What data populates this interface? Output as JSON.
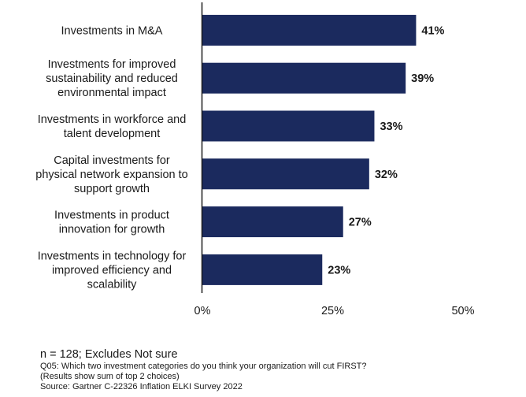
{
  "chart_data": {
    "type": "bar",
    "orientation": "horizontal",
    "categories": [
      [
        "Investments in M&A"
      ],
      [
        "Investments for improved",
        "sustainability and reduced",
        "environmental impact"
      ],
      [
        "Investments in workforce and",
        "talent development"
      ],
      [
        "Capital investments for",
        "physical network expansion to",
        "support growth"
      ],
      [
        "Investments in product",
        "innovation for growth"
      ],
      [
        "Investments in technology for",
        "improved efficiency and",
        "scalability"
      ]
    ],
    "values": [
      41,
      39,
      33,
      32,
      27,
      23
    ],
    "value_labels": [
      "41%",
      "39%",
      "33%",
      "32%",
      "27%",
      "23%"
    ],
    "xlim": [
      0,
      50
    ],
    "xticks": [
      0,
      25,
      50
    ],
    "xtick_labels": [
      "0%",
      "25%",
      "50%"
    ],
    "grid": false,
    "bar_color": "#1b2a5e"
  },
  "footnotes": {
    "sample": "n = 128; Excludes Not sure",
    "question": "Q05: Which two investment categories do you think your organization will cut FIRST?",
    "note": "(Results show sum of top 2 choices)",
    "source": "Source: Gartner C-22326 Inflation ELKI Survey 2022"
  }
}
